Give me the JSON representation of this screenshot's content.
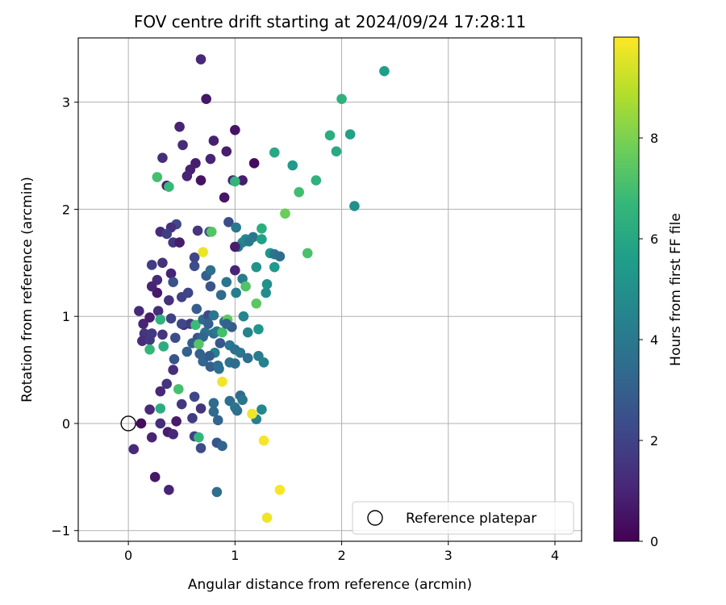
{
  "chart_data": {
    "type": "scatter",
    "title": "FOV centre drift starting at 2024/09/24 17:28:11",
    "xlabel": "Angular distance from reference (arcmin)",
    "ylabel": "Rotation from reference (arcmin)",
    "xlim": [
      -0.47,
      4.25
    ],
    "ylim": [
      -1.1,
      3.6
    ],
    "xticks": [
      0,
      1,
      2,
      3,
      4
    ],
    "xtick_labels": [
      "0",
      "1",
      "2",
      "3",
      "4"
    ],
    "yticks": [
      -1,
      0,
      1,
      2,
      3
    ],
    "ytick_labels": [
      "−1",
      "0",
      "1",
      "2",
      "3"
    ],
    "grid": true,
    "legend": {
      "location": "lower-right",
      "entries": [
        {
          "label": "Reference platepar",
          "marker": "open-circle"
        }
      ]
    },
    "colorbar": {
      "label": "Hours from first FF file",
      "min": 0,
      "max": 10,
      "ticks": [
        0,
        2,
        4,
        6,
        8
      ],
      "colormap": "viridis"
    },
    "reference_point": {
      "x": 0,
      "y": 0
    },
    "points": [
      {
        "x": 0.12,
        "y": 0.0,
        "h": 0.3
      },
      {
        "x": 0.05,
        "y": -0.24,
        "h": 1.2
      },
      {
        "x": 0.22,
        "y": -0.13,
        "h": 1.0
      },
      {
        "x": 0.25,
        "y": -0.5,
        "h": 0.6
      },
      {
        "x": 0.38,
        "y": -0.62,
        "h": 1.0
      },
      {
        "x": 0.2,
        "y": 0.13,
        "h": 1.2
      },
      {
        "x": 0.3,
        "y": 0.0,
        "h": 1.3
      },
      {
        "x": 0.37,
        "y": -0.08,
        "h": 0.8
      },
      {
        "x": 0.42,
        "y": -0.1,
        "h": 1.1
      },
      {
        "x": 0.45,
        "y": 0.02,
        "h": 0.7
      },
      {
        "x": 0.5,
        "y": 0.18,
        "h": 1.6
      },
      {
        "x": 0.6,
        "y": 0.05,
        "h": 1.8
      },
      {
        "x": 0.62,
        "y": 0.25,
        "h": 2.2
      },
      {
        "x": 0.68,
        "y": 0.14,
        "h": 1.5
      },
      {
        "x": 0.3,
        "y": 0.3,
        "h": 1.1
      },
      {
        "x": 0.36,
        "y": 0.37,
        "h": 1.5
      },
      {
        "x": 0.42,
        "y": 0.5,
        "h": 1.3
      },
      {
        "x": 0.47,
        "y": 0.32,
        "h": 7.0
      },
      {
        "x": 0.3,
        "y": 0.14,
        "h": 6.2
      },
      {
        "x": 0.62,
        "y": -0.12,
        "h": 2.0
      },
      {
        "x": 0.66,
        "y": -0.13,
        "h": 6.6
      },
      {
        "x": 0.68,
        "y": -0.23,
        "h": 2.3
      },
      {
        "x": 0.83,
        "y": -0.18,
        "h": 2.7
      },
      {
        "x": 0.88,
        "y": -0.21,
        "h": 3.2
      },
      {
        "x": 0.83,
        "y": -0.64,
        "h": 3.6
      },
      {
        "x": 0.8,
        "y": 0.19,
        "h": 3.5
      },
      {
        "x": 0.8,
        "y": 0.11,
        "h": 3.4
      },
      {
        "x": 0.84,
        "y": 0.03,
        "h": 3.2
      },
      {
        "x": 0.95,
        "y": 0.21,
        "h": 3.6
      },
      {
        "x": 1.0,
        "y": 0.15,
        "h": 3.9
      },
      {
        "x": 1.02,
        "y": 0.12,
        "h": 3.7
      },
      {
        "x": 1.05,
        "y": 0.26,
        "h": 3.4
      },
      {
        "x": 1.07,
        "y": 0.22,
        "h": 3.9
      },
      {
        "x": 1.2,
        "y": 0.04,
        "h": 4.4
      },
      {
        "x": 1.25,
        "y": 0.13,
        "h": 4.6
      },
      {
        "x": 1.16,
        "y": 0.09,
        "h": 9.8
      },
      {
        "x": 0.88,
        "y": 0.39,
        "h": 9.8
      },
      {
        "x": 1.27,
        "y": -0.16,
        "h": 9.9
      },
      {
        "x": 1.42,
        "y": -0.62,
        "h": 9.9
      },
      {
        "x": 1.3,
        "y": -0.88,
        "h": 9.8
      },
      {
        "x": 0.1,
        "y": 1.05,
        "h": 1.2
      },
      {
        "x": 0.14,
        "y": 0.93,
        "h": 1.0
      },
      {
        "x": 0.15,
        "y": 0.84,
        "h": 1.5
      },
      {
        "x": 0.13,
        "y": 0.77,
        "h": 1.3
      },
      {
        "x": 0.2,
        "y": 0.99,
        "h": 0.8
      },
      {
        "x": 0.22,
        "y": 0.84,
        "h": 1.7
      },
      {
        "x": 0.2,
        "y": 0.78,
        "h": 1.6
      },
      {
        "x": 0.27,
        "y": 1.22,
        "h": 0.7
      },
      {
        "x": 0.22,
        "y": 1.28,
        "h": 1.0
      },
      {
        "x": 0.28,
        "y": 1.05,
        "h": 1.3
      },
      {
        "x": 0.27,
        "y": 1.34,
        "h": 1.2
      },
      {
        "x": 0.32,
        "y": 0.83,
        "h": 1.5
      },
      {
        "x": 0.32,
        "y": 1.5,
        "h": 1.4
      },
      {
        "x": 0.22,
        "y": 1.48,
        "h": 1.8
      },
      {
        "x": 0.3,
        "y": 1.79,
        "h": 1.2
      },
      {
        "x": 0.38,
        "y": 1.15,
        "h": 1.4
      },
      {
        "x": 0.4,
        "y": 1.4,
        "h": 1.0
      },
      {
        "x": 0.4,
        "y": 0.98,
        "h": 2.0
      },
      {
        "x": 0.42,
        "y": 1.32,
        "h": 2.5
      },
      {
        "x": 0.42,
        "y": 1.69,
        "h": 1.6
      },
      {
        "x": 0.44,
        "y": 0.8,
        "h": 2.3
      },
      {
        "x": 0.43,
        "y": 0.6,
        "h": 2.6
      },
      {
        "x": 0.48,
        "y": 1.69,
        "h": 0.8
      },
      {
        "x": 0.5,
        "y": 1.18,
        "h": 2.0
      },
      {
        "x": 0.52,
        "y": 0.92,
        "h": 1.2
      },
      {
        "x": 0.55,
        "y": 0.67,
        "h": 3.1
      },
      {
        "x": 0.56,
        "y": 1.22,
        "h": 2.1
      },
      {
        "x": 0.58,
        "y": 0.93,
        "h": 1.7
      },
      {
        "x": 0.62,
        "y": 1.47,
        "h": 2.4
      },
      {
        "x": 0.62,
        "y": 1.55,
        "h": 2.1
      },
      {
        "x": 0.64,
        "y": 1.07,
        "h": 2.9
      },
      {
        "x": 0.63,
        "y": 0.92,
        "h": 6.8
      },
      {
        "x": 0.65,
        "y": 0.8,
        "h": 2.6
      },
      {
        "x": 0.67,
        "y": 0.65,
        "h": 3.1
      },
      {
        "x": 0.7,
        "y": 0.58,
        "h": 3.3
      },
      {
        "x": 0.7,
        "y": 0.97,
        "h": 3.4
      },
      {
        "x": 0.72,
        "y": 0.85,
        "h": 3.8
      },
      {
        "x": 0.73,
        "y": 1.38,
        "h": 3.0
      },
      {
        "x": 0.75,
        "y": 1.01,
        "h": 2.3
      },
      {
        "x": 0.77,
        "y": 1.43,
        "h": 3.6
      },
      {
        "x": 0.77,
        "y": 1.28,
        "h": 2.6
      },
      {
        "x": 0.8,
        "y": 0.84,
        "h": 3.5
      },
      {
        "x": 0.8,
        "y": 1.01,
        "h": 3.9
      },
      {
        "x": 0.81,
        "y": 0.66,
        "h": 4.3
      },
      {
        "x": 0.83,
        "y": 0.86,
        "h": 4.0
      },
      {
        "x": 0.85,
        "y": 0.51,
        "h": 3.7
      },
      {
        "x": 0.86,
        "y": 0.75,
        "h": 2.7
      },
      {
        "x": 0.87,
        "y": 1.2,
        "h": 3.4
      },
      {
        "x": 0.9,
        "y": 0.95,
        "h": 3.6
      },
      {
        "x": 0.92,
        "y": 1.32,
        "h": 3.9
      },
      {
        "x": 0.93,
        "y": 0.97,
        "h": 7.5
      },
      {
        "x": 0.95,
        "y": 0.73,
        "h": 3.9
      },
      {
        "x": 0.95,
        "y": 0.57,
        "h": 3.8
      },
      {
        "x": 0.97,
        "y": 0.9,
        "h": 2.9
      },
      {
        "x": 1.0,
        "y": 0.56,
        "h": 3.5
      },
      {
        "x": 1.0,
        "y": 0.69,
        "h": 3.7
      },
      {
        "x": 1.01,
        "y": 1.22,
        "h": 4.3
      },
      {
        "x": 1.05,
        "y": 0.66,
        "h": 3.9
      },
      {
        "x": 1.07,
        "y": 1.35,
        "h": 4.2
      },
      {
        "x": 1.08,
        "y": 1.0,
        "h": 4.6
      },
      {
        "x": 1.1,
        "y": 1.28,
        "h": 7.2
      },
      {
        "x": 1.12,
        "y": 0.85,
        "h": 4.5
      },
      {
        "x": 1.12,
        "y": 0.61,
        "h": 3.6
      },
      {
        "x": 1.17,
        "y": 1.74,
        "h": 3.9
      },
      {
        "x": 1.2,
        "y": 1.46,
        "h": 5.1
      },
      {
        "x": 1.2,
        "y": 1.12,
        "h": 7.4
      },
      {
        "x": 1.22,
        "y": 0.63,
        "h": 4.2
      },
      {
        "x": 1.22,
        "y": 0.88,
        "h": 5.2
      },
      {
        "x": 1.27,
        "y": 0.57,
        "h": 4.4
      },
      {
        "x": 1.29,
        "y": 1.22,
        "h": 4.9
      },
      {
        "x": 1.3,
        "y": 1.3,
        "h": 5.0
      },
      {
        "x": 1.33,
        "y": 1.59,
        "h": 5.2
      },
      {
        "x": 1.37,
        "y": 1.46,
        "h": 5.4
      },
      {
        "x": 1.37,
        "y": 1.58,
        "h": 3.8
      },
      {
        "x": 1.42,
        "y": 1.56,
        "h": 3.5
      },
      {
        "x": 1.07,
        "y": 1.69,
        "h": 4.6
      },
      {
        "x": 1.1,
        "y": 1.72,
        "h": 4.7
      },
      {
        "x": 1.13,
        "y": 1.7,
        "h": 4.0
      },
      {
        "x": 1.03,
        "y": 1.65,
        "h": 4.2
      },
      {
        "x": 0.77,
        "y": 0.53,
        "h": 3.0
      },
      {
        "x": 0.75,
        "y": 0.93,
        "h": 3.1
      },
      {
        "x": 0.84,
        "y": 0.54,
        "h": 3.6
      },
      {
        "x": 0.6,
        "y": 0.75,
        "h": 3.0
      },
      {
        "x": 0.7,
        "y": 0.81,
        "h": 3.3
      },
      {
        "x": 0.5,
        "y": 0.93,
        "h": 2.2
      },
      {
        "x": 0.76,
        "y": 0.63,
        "h": 2.9
      },
      {
        "x": 0.66,
        "y": 0.74,
        "h": 7.3
      },
      {
        "x": 0.88,
        "y": 0.85,
        "h": 7.0
      },
      {
        "x": 0.3,
        "y": 0.97,
        "h": 6.4
      },
      {
        "x": 0.2,
        "y": 0.69,
        "h": 6.6
      },
      {
        "x": 0.33,
        "y": 0.72,
        "h": 6.2
      },
      {
        "x": 0.92,
        "y": 0.93,
        "h": 3.2
      },
      {
        "x": 0.68,
        "y": 3.4,
        "h": 1.1
      },
      {
        "x": 0.73,
        "y": 3.03,
        "h": 0.6
      },
      {
        "x": 0.48,
        "y": 2.77,
        "h": 1.0
      },
      {
        "x": 0.8,
        "y": 2.64,
        "h": 0.9
      },
      {
        "x": 1.0,
        "y": 2.74,
        "h": 0.5
      },
      {
        "x": 0.51,
        "y": 2.6,
        "h": 1.2
      },
      {
        "x": 0.92,
        "y": 2.54,
        "h": 0.8
      },
      {
        "x": 0.32,
        "y": 2.48,
        "h": 1.3
      },
      {
        "x": 0.77,
        "y": 2.47,
        "h": 1.0
      },
      {
        "x": 0.63,
        "y": 2.43,
        "h": 0.8
      },
      {
        "x": 0.58,
        "y": 2.37,
        "h": 0.9
      },
      {
        "x": 1.18,
        "y": 2.43,
        "h": 0.3
      },
      {
        "x": 0.55,
        "y": 2.31,
        "h": 1.0
      },
      {
        "x": 0.68,
        "y": 2.27,
        "h": 0.5
      },
      {
        "x": 0.98,
        "y": 2.27,
        "h": 1.1
      },
      {
        "x": 1.07,
        "y": 2.27,
        "h": 0.8
      },
      {
        "x": 0.36,
        "y": 2.22,
        "h": 0.7
      },
      {
        "x": 0.9,
        "y": 2.11,
        "h": 0.6
      },
      {
        "x": 0.27,
        "y": 2.3,
        "h": 7.0
      },
      {
        "x": 0.38,
        "y": 2.21,
        "h": 6.7
      },
      {
        "x": 1.0,
        "y": 2.26,
        "h": 6.6
      },
      {
        "x": 0.45,
        "y": 1.86,
        "h": 2.2
      },
      {
        "x": 0.94,
        "y": 1.88,
        "h": 2.4
      },
      {
        "x": 0.76,
        "y": 1.79,
        "h": 2.7
      },
      {
        "x": 0.78,
        "y": 1.79,
        "h": 7.3
      },
      {
        "x": 1.01,
        "y": 1.83,
        "h": 4.0
      },
      {
        "x": 1.0,
        "y": 1.65,
        "h": 0.8
      },
      {
        "x": 1.0,
        "y": 1.43,
        "h": 1.0
      },
      {
        "x": 0.7,
        "y": 1.6,
        "h": 9.7
      },
      {
        "x": 0.65,
        "y": 1.8,
        "h": 1.5
      },
      {
        "x": 0.4,
        "y": 1.83,
        "h": 1.4
      },
      {
        "x": 0.36,
        "y": 1.77,
        "h": 1.9
      },
      {
        "x": 1.25,
        "y": 1.82,
        "h": 6.2
      },
      {
        "x": 1.25,
        "y": 1.72,
        "h": 5.7
      },
      {
        "x": 1.47,
        "y": 1.96,
        "h": 7.7
      },
      {
        "x": 1.68,
        "y": 1.59,
        "h": 7.1
      },
      {
        "x": 1.6,
        "y": 2.16,
        "h": 6.9
      },
      {
        "x": 1.76,
        "y": 2.27,
        "h": 6.4
      },
      {
        "x": 1.37,
        "y": 2.53,
        "h": 6.0
      },
      {
        "x": 1.54,
        "y": 2.41,
        "h": 5.4
      },
      {
        "x": 1.89,
        "y": 2.69,
        "h": 6.2
      },
      {
        "x": 1.95,
        "y": 2.54,
        "h": 6.0
      },
      {
        "x": 2.08,
        "y": 2.7,
        "h": 5.7
      },
      {
        "x": 2.12,
        "y": 2.03,
        "h": 5.0
      },
      {
        "x": 2.0,
        "y": 3.03,
        "h": 6.4
      },
      {
        "x": 2.4,
        "y": 3.29,
        "h": 5.6
      }
    ]
  }
}
